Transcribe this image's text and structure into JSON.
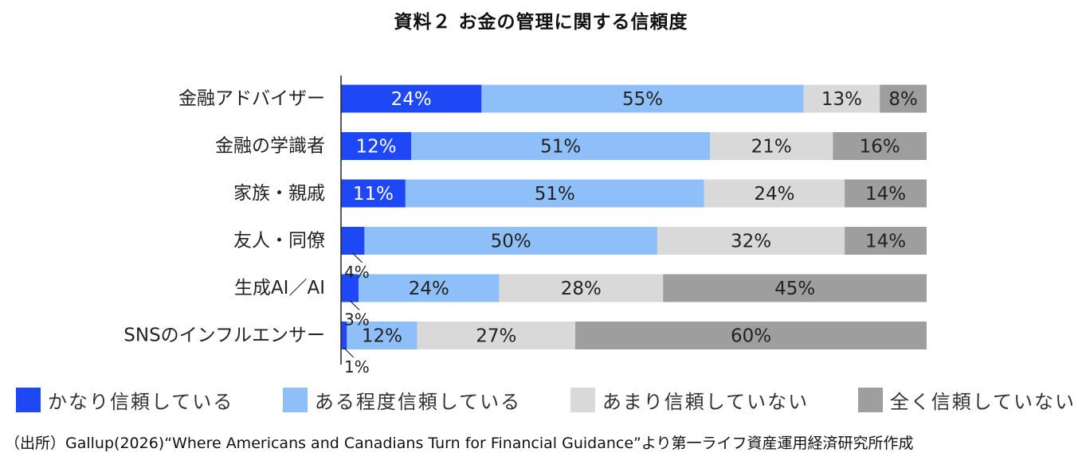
{
  "chart_data": {
    "type": "bar",
    "orientation": "horizontal",
    "stacked": true,
    "title": "資料２ お金の管理に関する信頼度",
    "xlabel": "",
    "ylabel": "",
    "xlim": [
      0,
      100
    ],
    "grid": false,
    "legend_position": "bottom",
    "categories": [
      "金融アドバイザー",
      "金融の学識者",
      "家族・親戚",
      "友人・同僚",
      "生成AI／AI",
      "SNSのインフルエンサー"
    ],
    "series": [
      {
        "name": "かなり信頼している",
        "color": "#1e47f5",
        "label_color": "#ffffff",
        "values": [
          24,
          12,
          11,
          4,
          3,
          1
        ],
        "labels": [
          "24%",
          "12%",
          "11%",
          "4%",
          "3%",
          "1%"
        ]
      },
      {
        "name": "ある程度信頼している",
        "color": "#8fbff9",
        "label_color": "#222222",
        "values": [
          55,
          51,
          51,
          50,
          24,
          12
        ],
        "labels": [
          "55%",
          "51%",
          "51%",
          "50%",
          "24%",
          "12%"
        ]
      },
      {
        "name": "あまり信頼していない",
        "color": "#d9d9d9",
        "label_color": "#222222",
        "values": [
          13,
          21,
          24,
          32,
          28,
          27
        ],
        "labels": [
          "13%",
          "21%",
          "24%",
          "32%",
          "28%",
          "27%"
        ]
      },
      {
        "name": "全く信頼していない",
        "color": "#9e9e9e",
        "label_color": "#222222",
        "values": [
          8,
          16,
          14,
          14,
          45,
          60
        ],
        "labels": [
          "8%",
          "16%",
          "14%",
          "14%",
          "45%",
          "60%"
        ]
      }
    ]
  },
  "source": "（出所）Gallup(2026)“Where Americans and Canadians Turn for Financial Guidance”より第一ライフ資産運用経済研究所作成"
}
